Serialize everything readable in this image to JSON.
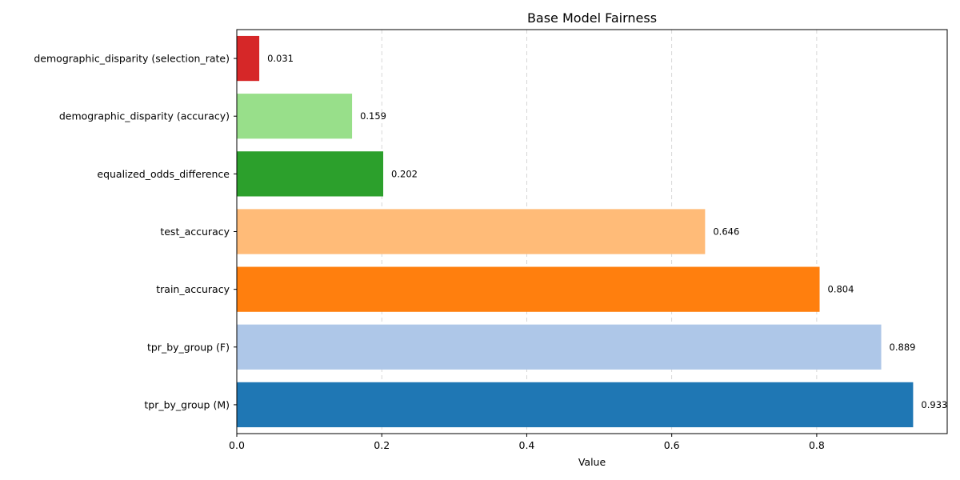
{
  "chart_data": {
    "type": "bar",
    "orientation": "horizontal",
    "title": "Base Model Fairness",
    "xlabel": "Value",
    "ylabel": "",
    "xlim": [
      0,
      0.98
    ],
    "xticks": [
      0.0,
      0.2,
      0.4,
      0.6,
      0.8
    ],
    "xtick_labels": [
      "0.0",
      "0.2",
      "0.4",
      "0.6",
      "0.8"
    ],
    "grid": "x-dashed",
    "categories": [
      "tpr_by_group (M)",
      "tpr_by_group (F)",
      "train_accuracy",
      "test_accuracy",
      "equalized_odds_difference",
      "demographic_disparity (accuracy)",
      "demographic_disparity (selection_rate)"
    ],
    "values": [
      0.933,
      0.889,
      0.804,
      0.646,
      0.202,
      0.159,
      0.031
    ],
    "value_labels": [
      "0.933",
      "0.889",
      "0.804",
      "0.646",
      "0.202",
      "0.159",
      "0.031"
    ],
    "colors": [
      "#1f77b4",
      "#aec7e8",
      "#ff7f0e",
      "#ffbb78",
      "#2ca02c",
      "#98df8a",
      "#d62728"
    ]
  }
}
